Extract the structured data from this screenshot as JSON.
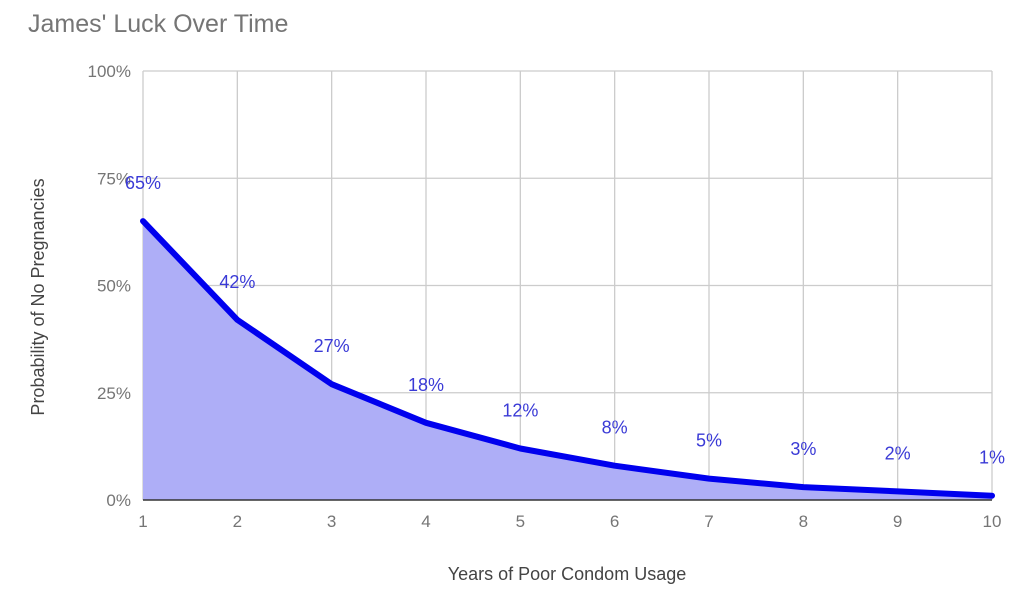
{
  "chart_data": {
    "type": "area",
    "title": "James' Luck Over Time",
    "xlabel": "Years of Poor Condom Usage",
    "ylabel": "Probability of No Pregnancies",
    "x": [
      1,
      2,
      3,
      4,
      5,
      6,
      7,
      8,
      9,
      10
    ],
    "x_tick_labels": [
      "1",
      "2",
      "3",
      "4",
      "5",
      "6",
      "7",
      "8",
      "9",
      "10"
    ],
    "values": [
      65,
      42,
      27,
      18,
      12,
      8,
      5,
      3,
      2,
      1
    ],
    "data_labels": [
      "65%",
      "42%",
      "27%",
      "18%",
      "12%",
      "8%",
      "5%",
      "3%",
      "2%",
      "1%"
    ],
    "ylim": [
      0,
      100
    ],
    "y_ticks": [
      0,
      25,
      50,
      75,
      100
    ],
    "y_tick_labels": [
      "0%",
      "25%",
      "50%",
      "75%",
      "100%"
    ],
    "grid": true,
    "legend": "none",
    "colors": {
      "line": "#0000ee",
      "fill": "#aeaef7",
      "data_label": "#3a3ad6",
      "grid": "#cccccc"
    }
  }
}
